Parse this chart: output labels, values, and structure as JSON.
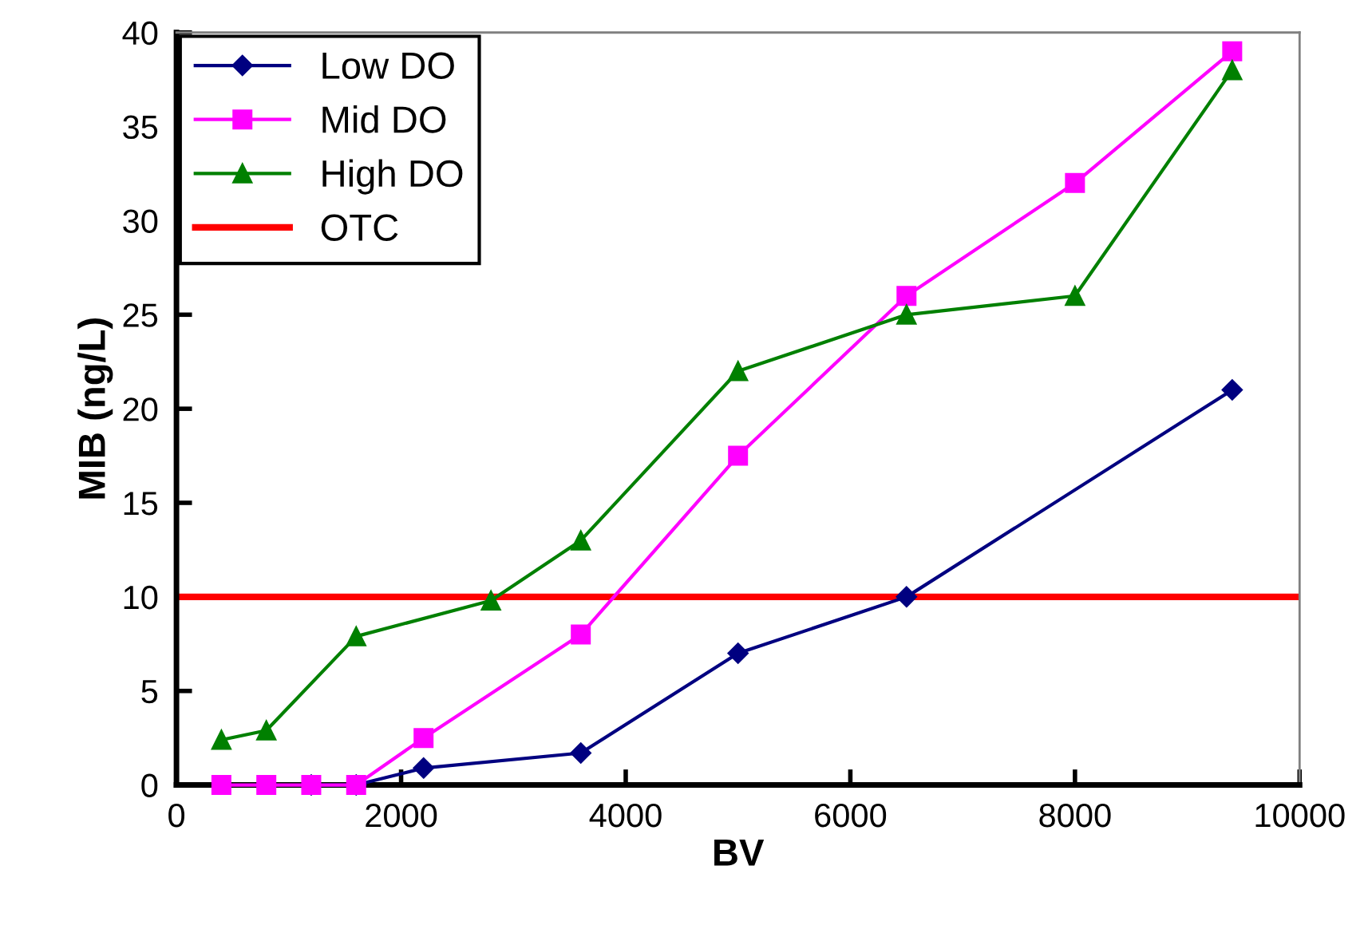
{
  "chart_data": {
    "type": "line",
    "xlabel": "BV",
    "ylabel": "MIB (ng/L)",
    "xlim": [
      0,
      10000
    ],
    "xticks": [
      0,
      2000,
      4000,
      6000,
      8000,
      10000
    ],
    "ylim": [
      0,
      40
    ],
    "yticks": [
      0,
      5,
      10,
      15,
      20,
      25,
      30,
      35,
      40
    ],
    "grid": false,
    "legend": "top left",
    "line_style": "solid",
    "series": [
      {
        "name": "Low DO",
        "color": "#000080",
        "marker": "diamond",
        "x": [
          1200,
          1600,
          2200,
          3600,
          5000,
          6500,
          9400
        ],
        "values": [
          0,
          0,
          0.9,
          1.7,
          7,
          10,
          21
        ]
      },
      {
        "name": "Mid DO",
        "color": "#ff00ff",
        "marker": "square",
        "x": [
          400,
          800,
          1200,
          1600,
          2200,
          3600,
          5000,
          6500,
          8000,
          9400
        ],
        "values": [
          0,
          0,
          0,
          0,
          2.5,
          8,
          17.5,
          26,
          32,
          39
        ]
      },
      {
        "name": "High DO",
        "color": "#008000",
        "marker": "triangle",
        "x": [
          400,
          800,
          1600,
          2800,
          3600,
          5000,
          6500,
          8000,
          9400
        ],
        "values": [
          2.4,
          2.9,
          7.9,
          9.8,
          13,
          22,
          25,
          26,
          38
        ]
      }
    ],
    "ref_lines": [
      {
        "axis": "y",
        "value": 10,
        "label": "OTC",
        "color": "#ff0000"
      }
    ]
  }
}
